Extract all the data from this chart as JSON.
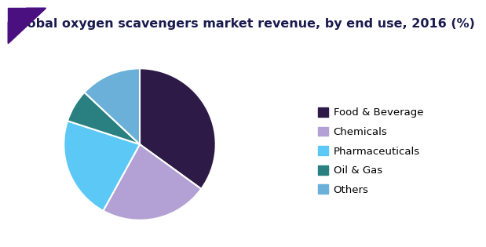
{
  "title": "Global oxygen scavengers market revenue, by end use, 2016 (%)",
  "labels": [
    "Food & Beverage",
    "Chemicals",
    "Pharmaceuticals",
    "Oil & Gas",
    "Others"
  ],
  "values": [
    35,
    23,
    22,
    7,
    13
  ],
  "colors": [
    "#2e1a47",
    "#b3a0d4",
    "#5bc8f5",
    "#2a8080",
    "#6ab0d8"
  ],
  "startangle": 90,
  "title_color": "#1a1a4e",
  "header_line_color": "#6a0dad",
  "legend_fontsize": 9.5,
  "title_fontsize": 11.5,
  "wedge_linewidth": 1.5
}
